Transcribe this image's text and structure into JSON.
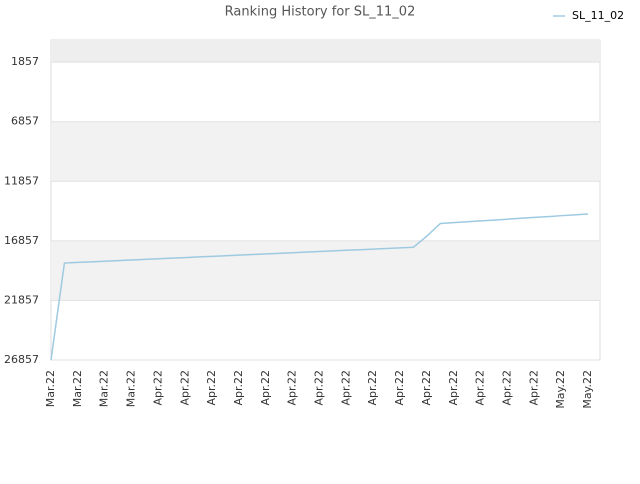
{
  "chart_data": {
    "type": "line",
    "title": "Ranking History for SL_11_02",
    "categories": [
      "Mar.22",
      null,
      "Mar.22",
      null,
      "Mar.22",
      null,
      "Mar.22",
      null,
      "Apr.22",
      null,
      "Apr.22",
      null,
      "Apr.22",
      null,
      "Apr.22",
      null,
      "Apr.22",
      null,
      "Apr.22",
      null,
      "Apr.22",
      null,
      "Apr.22",
      null,
      "Apr.22",
      null,
      "Apr.22",
      null,
      "Apr.22",
      null,
      "Apr.22",
      null,
      "Apr.22",
      null,
      "Apr.22",
      null,
      "Apr.22",
      null,
      "May.22",
      null,
      "May.22"
    ],
    "series": [
      {
        "name": "SL_11_02",
        "color": "#9ecae1",
        "values": [
          26857,
          18719,
          18666,
          18617,
          18564,
          18514,
          18461,
          18412,
          18363,
          18310,
          18260,
          18207,
          18158,
          18109,
          18056,
          18005,
          17952,
          17903,
          17854,
          17801,
          17752,
          17699,
          17649,
          17600,
          17547,
          17497,
          17444,
          17395,
          16453,
          15400,
          15330,
          15255,
          15185,
          15115,
          15040,
          14965,
          14890,
          14820,
          14745,
          14675,
          14600
        ]
      }
    ],
    "ylim": [
      26857,
      0
    ],
    "yticks": [
      1857,
      6857,
      11857,
      16857,
      21857,
      26857
    ],
    "bands": true,
    "legend": "top-right"
  }
}
